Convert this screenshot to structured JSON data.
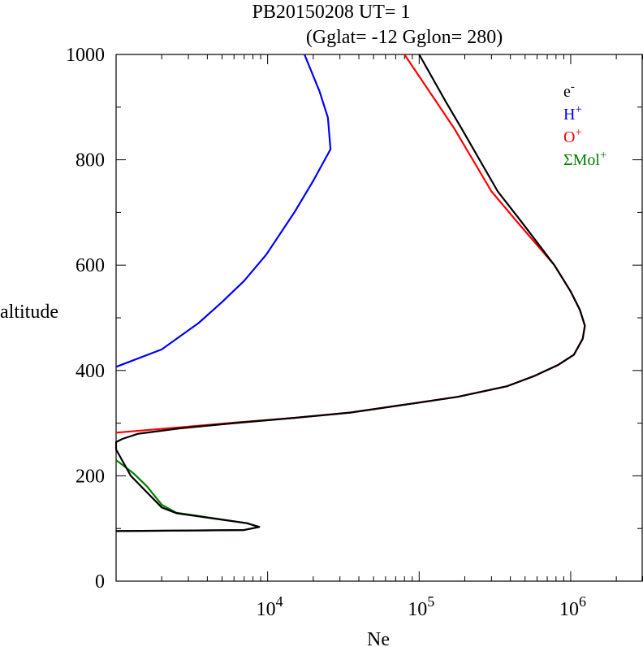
{
  "title": {
    "line1": "PB20150208   UT=  1",
    "line2": "(Gglat= -12   Gglon=  280)"
  },
  "chart_data": {
    "type": "line",
    "xlabel": "Ne",
    "ylabel": "altitude",
    "xscale": "log",
    "xlim": [
      1000,
      3000000
    ],
    "ylim": [
      0,
      1000
    ],
    "x_tick_labels": [
      {
        "base": "10",
        "exp": "4",
        "value": 10000
      },
      {
        "base": "10",
        "exp": "5",
        "value": 100000
      },
      {
        "base": "10",
        "exp": "6",
        "value": 1000000
      }
    ],
    "y_ticks": [
      0,
      200,
      400,
      600,
      800,
      1000
    ],
    "legend": {
      "placement": "top-right",
      "entries": [
        {
          "base": "e",
          "sup": "-",
          "color": "#000000"
        },
        {
          "base": "H",
          "sup": "+",
          "color": "#0000ff"
        },
        {
          "base": "O",
          "sup": "+",
          "color": "#ff0000"
        },
        {
          "base": "ΣMol",
          "sup": "+",
          "color": "#008000"
        }
      ]
    },
    "series": [
      {
        "key": "e",
        "color": "#000000",
        "points": [
          [
            1000,
            95
          ],
          [
            7000,
            97
          ],
          [
            8800,
            103
          ],
          [
            7300,
            110
          ],
          [
            2500,
            129
          ],
          [
            2000,
            140
          ],
          [
            1250,
            200
          ],
          [
            1000,
            250
          ],
          [
            1000,
            264
          ],
          [
            1100,
            270
          ],
          [
            1400,
            280
          ],
          [
            2600,
            290
          ],
          [
            6000,
            300
          ],
          [
            15000,
            310
          ],
          [
            35000,
            320
          ],
          [
            80000,
            335
          ],
          [
            180000,
            350
          ],
          [
            380000,
            370
          ],
          [
            580000,
            390
          ],
          [
            820000,
            410
          ],
          [
            1050000,
            430
          ],
          [
            1200000,
            460
          ],
          [
            1240000,
            485
          ],
          [
            1150000,
            515
          ],
          [
            1000000,
            550
          ],
          [
            780000,
            600
          ],
          [
            480000,
            680
          ],
          [
            330000,
            740
          ],
          [
            190000,
            860
          ],
          [
            150000,
            910
          ],
          [
            100000,
            1000
          ]
        ]
      },
      {
        "key": "O",
        "color": "#ff0000",
        "points": [
          [
            1000,
            282
          ],
          [
            2600,
            292
          ],
          [
            6000,
            301
          ],
          [
            15000,
            310
          ],
          [
            35000,
            320
          ],
          [
            80000,
            335
          ],
          [
            180000,
            350
          ],
          [
            380000,
            370
          ],
          [
            580000,
            390
          ],
          [
            820000,
            410
          ],
          [
            1050000,
            430
          ],
          [
            1200000,
            460
          ],
          [
            1240000,
            485
          ],
          [
            1150000,
            515
          ],
          [
            1000000,
            550
          ],
          [
            780000,
            600
          ],
          [
            450000,
            680
          ],
          [
            300000,
            740
          ],
          [
            170000,
            860
          ],
          [
            80000,
            1000
          ]
        ]
      },
      {
        "key": "H",
        "color": "#0000ff",
        "points": [
          [
            1000,
            407
          ],
          [
            2000,
            440
          ],
          [
            3500,
            490
          ],
          [
            5000,
            530
          ],
          [
            7000,
            570
          ],
          [
            9800,
            620
          ],
          [
            15000,
            700
          ],
          [
            20000,
            760
          ],
          [
            26000,
            820
          ],
          [
            25000,
            880
          ],
          [
            22000,
            930
          ],
          [
            17500,
            1000
          ]
        ]
      },
      {
        "key": "Mol",
        "color": "#008000",
        "points": [
          [
            1000,
            230
          ],
          [
            1300,
            205
          ],
          [
            1600,
            180
          ],
          [
            2000,
            145
          ],
          [
            2500,
            130
          ],
          [
            7300,
            110
          ],
          [
            8800,
            103
          ],
          [
            7000,
            97
          ],
          [
            1000,
            95
          ]
        ]
      }
    ]
  }
}
